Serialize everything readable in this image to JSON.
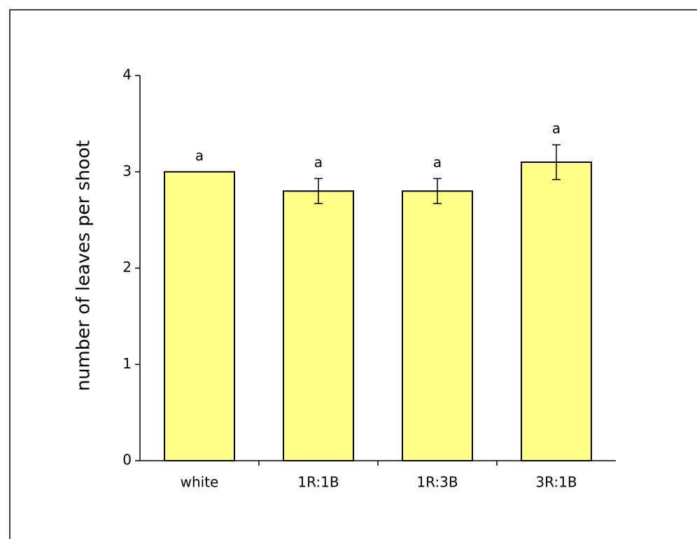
{
  "chart_data": {
    "type": "bar",
    "y_label": "number of leaves per shoot",
    "categories": [
      "white",
      "1R:1B",
      "1R:3B",
      "3R:1B"
    ],
    "values": [
      3.0,
      2.8,
      2.8,
      3.1
    ],
    "errors": [
      0,
      0.13,
      0.13,
      0.18
    ],
    "annotations": [
      "a",
      "a",
      "a",
      "a"
    ],
    "color": "#ffff88",
    "ylim": [
      0,
      4
    ],
    "yticks": [
      0,
      1,
      2,
      3,
      4
    ]
  }
}
